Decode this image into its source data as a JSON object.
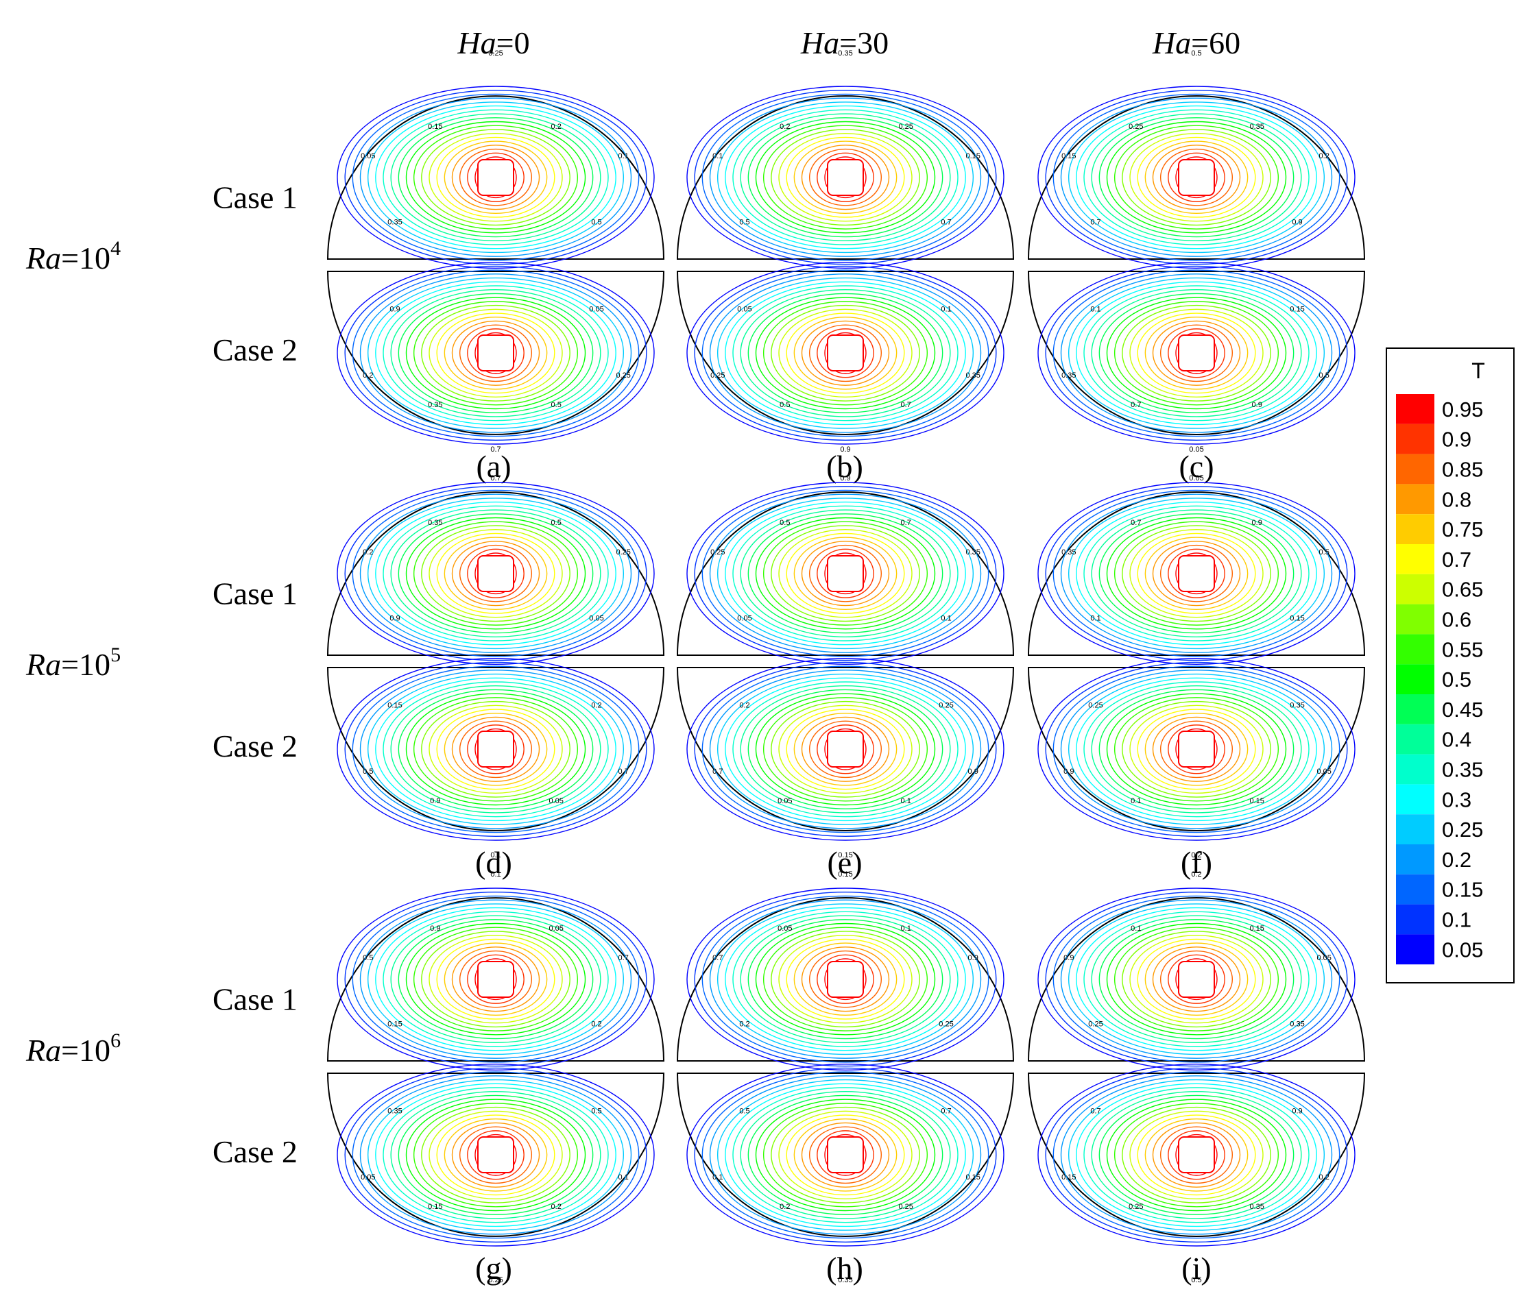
{
  "column_headers": [
    {
      "var": "Ha",
      "value": "=0"
    },
    {
      "var": "Ha",
      "value": "=30"
    },
    {
      "var": "Ha",
      "value": "=60"
    }
  ],
  "row_headers": [
    {
      "var": "Ra",
      "base": "=10",
      "exp": "4"
    },
    {
      "var": "Ra",
      "base": "=10",
      "exp": "5"
    },
    {
      "var": "Ra",
      "base": "=10",
      "exp": "6"
    }
  ],
  "case_labels": [
    "Case 1",
    "Case 2"
  ],
  "panel_labels": [
    "(a)",
    "(b)",
    "(c)",
    "(d)",
    "(e)",
    "(f)",
    "(g)",
    "(h)",
    "(i)"
  ],
  "legend": {
    "title": "T",
    "levels": [
      "0.95",
      "0.9",
      "0.85",
      "0.8",
      "0.75",
      "0.7",
      "0.65",
      "0.6",
      "0.55",
      "0.5",
      "0.45",
      "0.4",
      "0.35",
      "0.3",
      "0.25",
      "0.2",
      "0.15",
      "0.1",
      "0.05"
    ],
    "colors": [
      "#ff0000",
      "#ff3300",
      "#ff6600",
      "#ff9900",
      "#ffcc00",
      "#ffff00",
      "#ccff00",
      "#80ff00",
      "#33ff00",
      "#00ff00",
      "#00ff55",
      "#00ff99",
      "#00ffcc",
      "#00ffff",
      "#00ccff",
      "#0099ff",
      "#0066ff",
      "#0033ff",
      "#0000ff"
    ]
  },
  "contour_labels": [
    "0.05",
    "0.1",
    "0.15",
    "0.2",
    "0.25",
    "0.35",
    "0.5",
    "0.7",
    "0.9"
  ]
}
